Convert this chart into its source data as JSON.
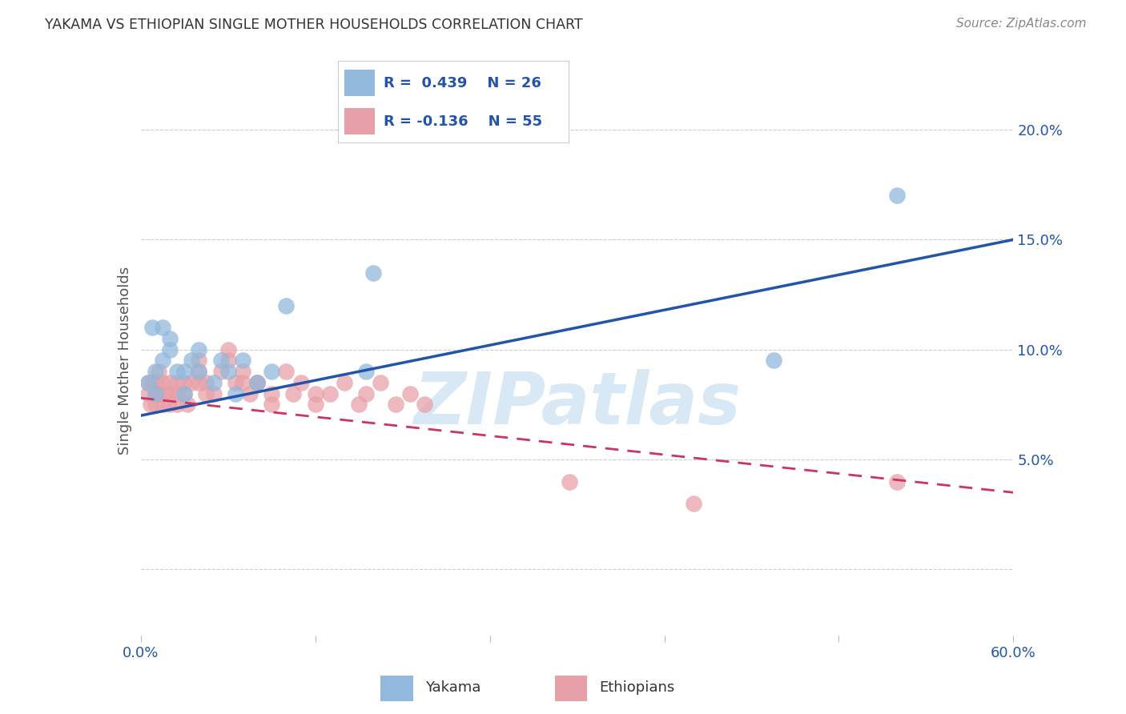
{
  "title": "YAKAMA VS ETHIOPIAN SINGLE MOTHER HOUSEHOLDS CORRELATION CHART",
  "source": "Source: ZipAtlas.com",
  "ylabel": "Single Mother Households",
  "xlim": [
    0,
    0.6
  ],
  "ylim": [
    -0.03,
    0.22
  ],
  "yticks": [
    0.0,
    0.05,
    0.1,
    0.15,
    0.2
  ],
  "ytick_labels": [
    "",
    "5.0%",
    "10.0%",
    "15.0%",
    "20.0%"
  ],
  "xticks": [
    0.0,
    0.12,
    0.24,
    0.36,
    0.48,
    0.6
  ],
  "xtick_labels": [
    "0.0%",
    "",
    "",
    "",
    "",
    "60.0%"
  ],
  "yakama_R": 0.439,
  "yakama_N": 26,
  "ethiopian_R": -0.136,
  "ethiopian_N": 55,
  "yakama_color": "#92b8db",
  "ethiopian_color": "#e8a0a8",
  "yakama_line_color": "#2255aa",
  "ethiopian_line_color": "#cc3366",
  "background_color": "#ffffff",
  "grid_color": "#cccccc",
  "title_color": "#333333",
  "watermark_color": "#d8e8f5",
  "yakama_x": [
    0.005,
    0.008,
    0.01,
    0.01,
    0.015,
    0.015,
    0.02,
    0.02,
    0.025,
    0.03,
    0.03,
    0.035,
    0.04,
    0.04,
    0.05,
    0.055,
    0.06,
    0.065,
    0.07,
    0.08,
    0.09,
    0.1,
    0.155,
    0.16,
    0.435,
    0.52
  ],
  "yakama_y": [
    0.085,
    0.11,
    0.08,
    0.09,
    0.11,
    0.095,
    0.105,
    0.1,
    0.09,
    0.08,
    0.09,
    0.095,
    0.09,
    0.1,
    0.085,
    0.095,
    0.09,
    0.08,
    0.095,
    0.085,
    0.09,
    0.12,
    0.09,
    0.135,
    0.095,
    0.17
  ],
  "ethiopian_x": [
    0.005,
    0.005,
    0.007,
    0.008,
    0.01,
    0.01,
    0.01,
    0.012,
    0.012,
    0.015,
    0.015,
    0.018,
    0.02,
    0.02,
    0.02,
    0.025,
    0.025,
    0.025,
    0.03,
    0.03,
    0.032,
    0.035,
    0.04,
    0.04,
    0.04,
    0.045,
    0.045,
    0.05,
    0.055,
    0.06,
    0.06,
    0.065,
    0.07,
    0.07,
    0.075,
    0.08,
    0.08,
    0.09,
    0.09,
    0.1,
    0.105,
    0.11,
    0.12,
    0.12,
    0.13,
    0.14,
    0.15,
    0.155,
    0.165,
    0.175,
    0.185,
    0.195,
    0.295,
    0.38,
    0.52
  ],
  "ethiopian_y": [
    0.085,
    0.08,
    0.075,
    0.085,
    0.08,
    0.075,
    0.085,
    0.09,
    0.08,
    0.075,
    0.085,
    0.08,
    0.085,
    0.075,
    0.08,
    0.08,
    0.085,
    0.075,
    0.085,
    0.08,
    0.075,
    0.085,
    0.095,
    0.09,
    0.085,
    0.08,
    0.085,
    0.08,
    0.09,
    0.1,
    0.095,
    0.085,
    0.09,
    0.085,
    0.08,
    0.085,
    0.085,
    0.08,
    0.075,
    0.09,
    0.08,
    0.085,
    0.075,
    0.08,
    0.08,
    0.085,
    0.075,
    0.08,
    0.085,
    0.075,
    0.08,
    0.075,
    0.04,
    0.03,
    0.04
  ],
  "yakama_line_x0": 0.0,
  "yakama_line_x1": 0.6,
  "yakama_line_y0": 0.07,
  "yakama_line_y1": 0.15,
  "ethiopian_line_x0": 0.0,
  "ethiopian_line_x1": 0.6,
  "ethiopian_line_y0": 0.078,
  "ethiopian_line_y1": 0.035
}
